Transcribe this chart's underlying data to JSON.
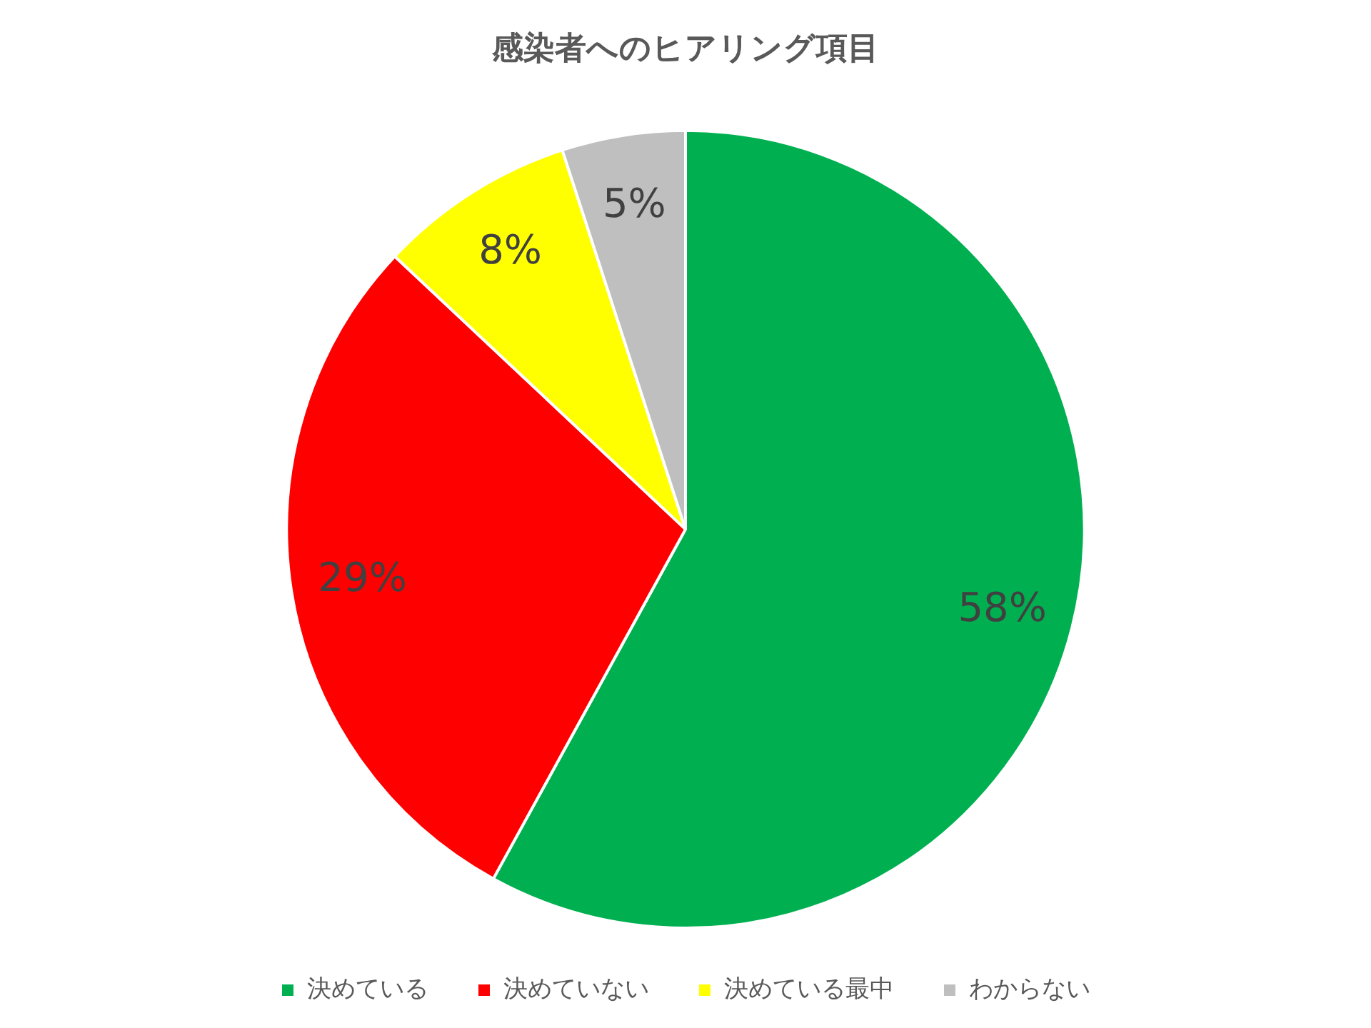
{
  "chart_data": {
    "type": "pie",
    "title": "感染者へのヒアリング項目",
    "categories": [
      "決めている",
      "決めていない",
      "決めている最中",
      "わからない"
    ],
    "values": [
      58,
      29,
      8,
      5
    ],
    "colors": [
      "#00b050",
      "#ff0000",
      "#ffff00",
      "#bfbfbf"
    ],
    "value_labels": [
      "58%",
      "29%",
      "8%",
      "5%"
    ],
    "legend": "bottom"
  }
}
